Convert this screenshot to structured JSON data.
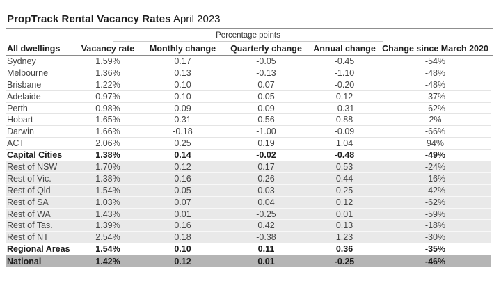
{
  "title": {
    "bold": "PropTrack Rental Vacancy Rates",
    "regular": " April 2023"
  },
  "colors": {
    "background": "#ffffff",
    "title_text": "#1b1b1b",
    "row_text": "#454545",
    "shaded_row_bg": "#e9e9e9",
    "national_row_bg": "#b5b5b5",
    "top_rule": "#c6c6c6",
    "title_rule": "#8f8f8f",
    "header_rule": "#8a8a8a"
  },
  "chart_data": {
    "type": "table",
    "title": "PropTrack Rental Vacancy Rates April 2023",
    "group_header": "Percentage points",
    "group_header_spans": [
      "Monthly change",
      "Quarterly change",
      "Annual change"
    ],
    "columns": [
      "All dwellings",
      "Vacancy rate",
      "Monthly change",
      "Quarterly change",
      "Annual change",
      "Change since March 2020"
    ],
    "rows": [
      {
        "style": "plain",
        "cells": [
          "Sydney",
          "1.59%",
          "0.17",
          "-0.05",
          "-0.45",
          "-54%"
        ]
      },
      {
        "style": "plain",
        "cells": [
          "Melbourne",
          "1.36%",
          "0.13",
          "-0.13",
          "-1.10",
          "-48%"
        ]
      },
      {
        "style": "plain",
        "cells": [
          "Brisbane",
          "1.22%",
          "0.10",
          "0.07",
          "-0.20",
          "-48%"
        ]
      },
      {
        "style": "plain",
        "cells": [
          "Adelaide",
          "0.97%",
          "0.10",
          "0.05",
          "0.12",
          "-37%"
        ]
      },
      {
        "style": "plain",
        "cells": [
          "Perth",
          "0.98%",
          "0.09",
          "0.09",
          "-0.31",
          "-62%"
        ]
      },
      {
        "style": "plain",
        "cells": [
          "Hobart",
          "1.65%",
          "0.31",
          "0.56",
          "0.88",
          "2%"
        ]
      },
      {
        "style": "plain",
        "cells": [
          "Darwin",
          "1.66%",
          "-0.18",
          "-1.00",
          "-0.09",
          "-66%"
        ]
      },
      {
        "style": "plain",
        "cells": [
          "ACT",
          "2.06%",
          "0.25",
          "0.19",
          "1.04",
          "94%"
        ]
      },
      {
        "style": "bold",
        "cells": [
          "Capital Cities",
          "1.38%",
          "0.14",
          "-0.02",
          "-0.48",
          "-49%"
        ]
      },
      {
        "style": "shaded",
        "cells": [
          "Rest of NSW",
          "1.70%",
          "0.12",
          "0.17",
          "0.53",
          "-24%"
        ]
      },
      {
        "style": "shaded",
        "cells": [
          "Rest of Vic.",
          "1.38%",
          "0.16",
          "0.26",
          "0.44",
          "-16%"
        ]
      },
      {
        "style": "shaded",
        "cells": [
          "Rest of Qld",
          "1.54%",
          "0.05",
          "0.03",
          "0.25",
          "-42%"
        ]
      },
      {
        "style": "shaded",
        "cells": [
          "Rest of SA",
          "1.03%",
          "0.07",
          "0.04",
          "0.12",
          "-62%"
        ]
      },
      {
        "style": "shaded",
        "cells": [
          "Rest of WA",
          "1.43%",
          "0.01",
          "-0.25",
          "0.01",
          "-59%"
        ]
      },
      {
        "style": "shaded",
        "cells": [
          "Rest of Tas.",
          "1.39%",
          "0.16",
          "0.42",
          "0.13",
          "-18%"
        ]
      },
      {
        "style": "shaded",
        "cells": [
          "Rest of NT",
          "2.54%",
          "0.18",
          "-0.38",
          "1.23",
          "-30%"
        ]
      },
      {
        "style": "bold",
        "cells": [
          "Regional Areas",
          "1.54%",
          "0.10",
          "0.11",
          "0.36",
          "-35%"
        ]
      },
      {
        "style": "national",
        "cells": [
          "National",
          "1.42%",
          "0.12",
          "0.01",
          "-0.25",
          "-46%"
        ]
      }
    ]
  }
}
